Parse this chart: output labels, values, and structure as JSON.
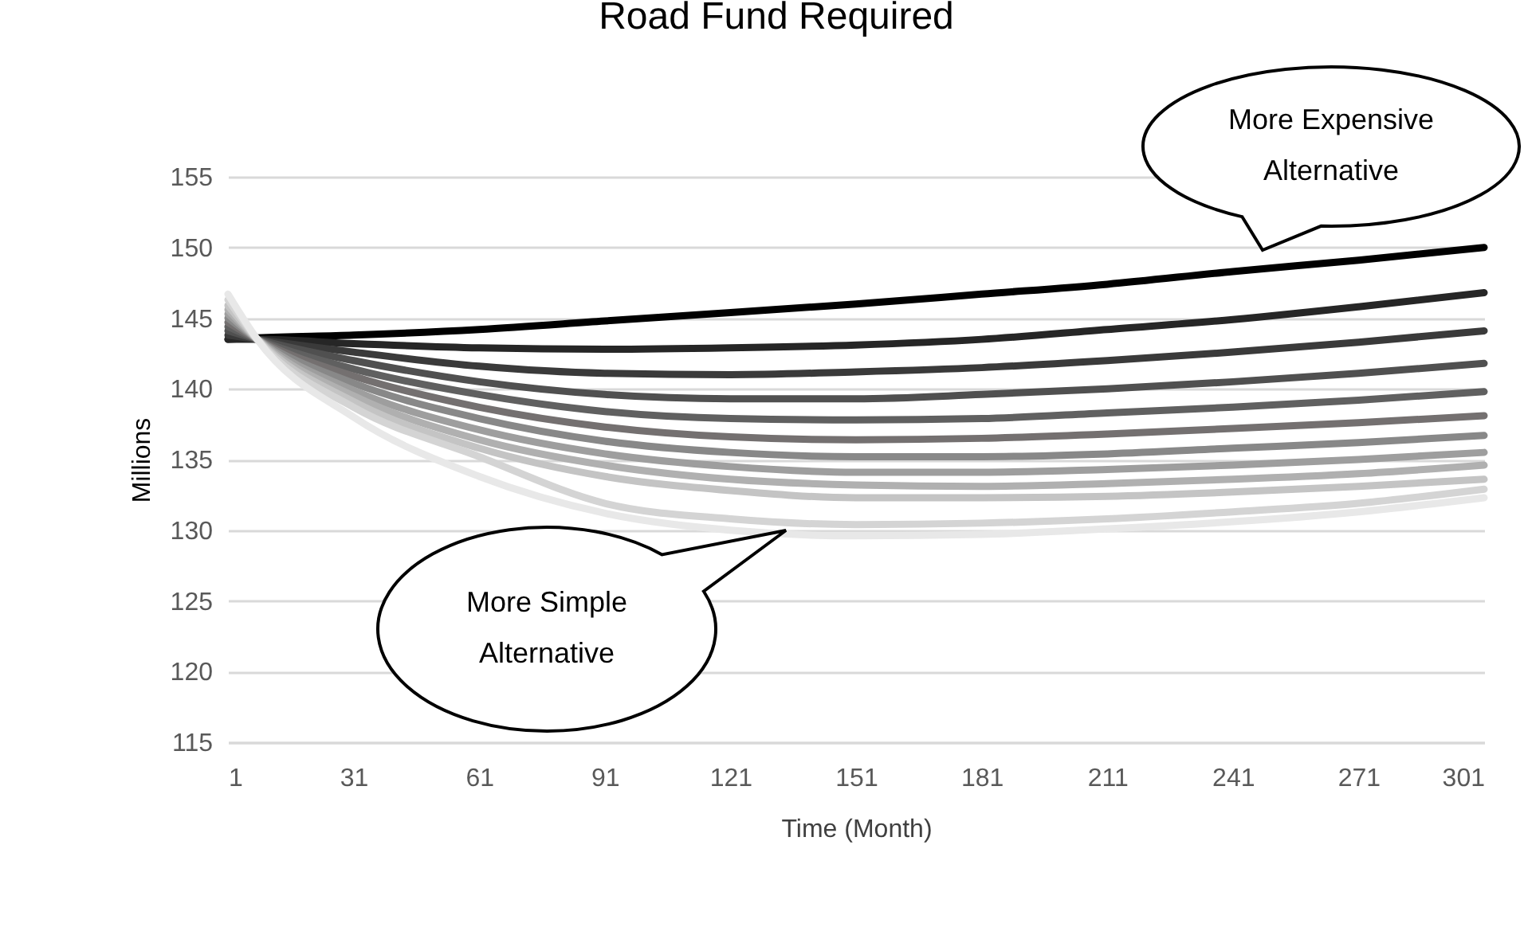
{
  "chart_data": {
    "type": "line",
    "title": "Road Fund Required",
    "xlabel": "Time (Month)",
    "ylabel": "Millions",
    "x": [
      1,
      8,
      31,
      61,
      91,
      121,
      151,
      181,
      211,
      241,
      271,
      301
    ],
    "xlim": [
      1,
      301
    ],
    "xticks": [
      1,
      31,
      61,
      91,
      121,
      151,
      181,
      211,
      241,
      271,
      301
    ],
    "ylim": [
      115,
      155
    ],
    "yticks": [
      115,
      120,
      125,
      130,
      135,
      140,
      145,
      150,
      155
    ],
    "grid": "y",
    "marker": "none",
    "line_style": "solid",
    "series": [
      {
        "color": "#000000",
        "values": [
          143.5,
          143.6,
          143.8,
          144.2,
          144.8,
          145.4,
          146.0,
          146.7,
          147.4,
          148.3,
          149.1,
          150.0
        ]
      },
      {
        "color": "#262626",
        "values": [
          143.5,
          143.5,
          143.2,
          142.9,
          142.8,
          142.9,
          143.1,
          143.5,
          144.2,
          144.9,
          145.8,
          146.8
        ]
      },
      {
        "color": "#3a3a3a",
        "values": [
          143.8,
          143.5,
          142.6,
          141.6,
          141.1,
          141.0,
          141.2,
          141.5,
          142.0,
          142.6,
          143.3,
          144.1
        ]
      },
      {
        "color": "#505050",
        "values": [
          144.1,
          143.5,
          142.0,
          140.5,
          139.6,
          139.3,
          139.3,
          139.6,
          140.0,
          140.5,
          141.1,
          141.8
        ]
      },
      {
        "color": "#606060",
        "values": [
          144.4,
          143.5,
          141.4,
          139.6,
          138.4,
          137.9,
          137.8,
          137.9,
          138.3,
          138.7,
          139.2,
          139.8
        ]
      },
      {
        "color": "#747070",
        "values": [
          144.7,
          143.5,
          140.9,
          138.7,
          137.3,
          136.6,
          136.4,
          136.5,
          136.8,
          137.2,
          137.6,
          138.1
        ]
      },
      {
        "color": "#888888",
        "values": [
          145.0,
          143.5,
          140.4,
          137.9,
          136.3,
          135.5,
          135.2,
          135.2,
          135.4,
          135.8,
          136.2,
          136.7
        ]
      },
      {
        "color": "#9e9e9e",
        "values": [
          145.3,
          143.5,
          139.9,
          137.1,
          135.4,
          134.5,
          134.1,
          134.1,
          134.3,
          134.6,
          135.0,
          135.5
        ]
      },
      {
        "color": "#b0b0b0",
        "values": [
          145.6,
          143.5,
          139.5,
          136.4,
          134.6,
          133.6,
          133.2,
          133.1,
          133.3,
          133.6,
          134.0,
          134.6
        ]
      },
      {
        "color": "#c4c4c4",
        "values": [
          145.9,
          143.5,
          139.1,
          135.8,
          133.8,
          132.8,
          132.3,
          132.3,
          132.4,
          132.7,
          133.1,
          133.6
        ]
      },
      {
        "color": "#d4d4d4",
        "values": [
          146.3,
          143.5,
          138.7,
          135.2,
          131.9,
          130.8,
          130.4,
          130.5,
          130.8,
          131.3,
          131.9,
          132.9
        ]
      },
      {
        "color": "#e8e8e8",
        "values": [
          146.7,
          143.5,
          138.0,
          133.8,
          131.2,
          130.0,
          129.6,
          129.7,
          130.1,
          130.6,
          131.3,
          132.3
        ]
      }
    ],
    "annotations": [
      "More Expensive Alternative",
      "More Simple Alternative"
    ]
  }
}
